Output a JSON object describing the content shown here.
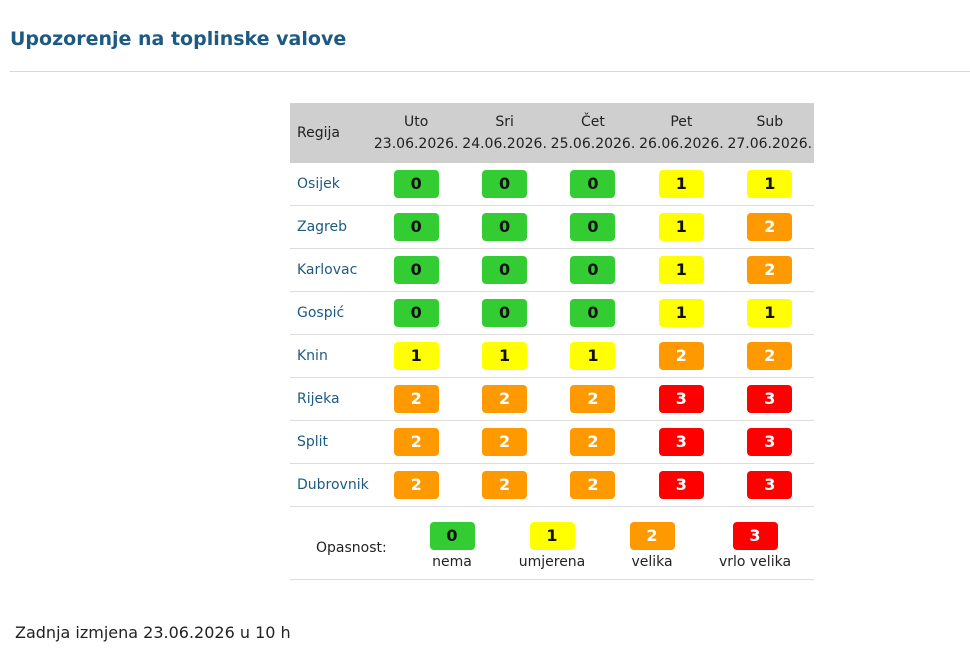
{
  "page": {
    "title": "Upozorenje na toplinske valove"
  },
  "table": {
    "region_header": "Regija",
    "days": [
      {
        "day": "Uto",
        "date": "23.06.2026."
      },
      {
        "day": "Sri",
        "date": "24.06.2026."
      },
      {
        "day": "Čet",
        "date": "25.06.2026."
      },
      {
        "day": "Pet",
        "date": "26.06.2026."
      },
      {
        "day": "Sub",
        "date": "27.06.2026."
      }
    ],
    "rows": [
      {
        "region": "Osijek",
        "levels": [
          "0",
          "0",
          "0",
          "1",
          "1"
        ]
      },
      {
        "region": "Zagreb",
        "levels": [
          "0",
          "0",
          "0",
          "1",
          "2"
        ]
      },
      {
        "region": "Karlovac",
        "levels": [
          "0",
          "0",
          "0",
          "1",
          "2"
        ]
      },
      {
        "region": "Gospić",
        "levels": [
          "0",
          "0",
          "0",
          "1",
          "1"
        ]
      },
      {
        "region": "Knin",
        "levels": [
          "1",
          "1",
          "1",
          "2",
          "2"
        ]
      },
      {
        "region": "Rijeka",
        "levels": [
          "2",
          "2",
          "2",
          "3",
          "3"
        ]
      },
      {
        "region": "Split",
        "levels": [
          "2",
          "2",
          "2",
          "3",
          "3"
        ]
      },
      {
        "region": "Dubrovnik",
        "levels": [
          "2",
          "2",
          "2",
          "3",
          "3"
        ]
      }
    ]
  },
  "legend": {
    "label": "Opasnost:",
    "items": [
      {
        "value": "0",
        "text": "nema"
      },
      {
        "value": "1",
        "text": "umjerena"
      },
      {
        "value": "2",
        "text": "velika"
      },
      {
        "value": "3",
        "text": "vrlo velika"
      }
    ]
  },
  "colors": {
    "level_0": "#33cc33",
    "level_1": "#ffff00",
    "level_2": "#ff9900",
    "level_3": "#ff0000",
    "accent": "#1d5a82"
  },
  "footer": {
    "last_modified": "Zadnja izmjena 23.06.2026 u 10 h"
  }
}
